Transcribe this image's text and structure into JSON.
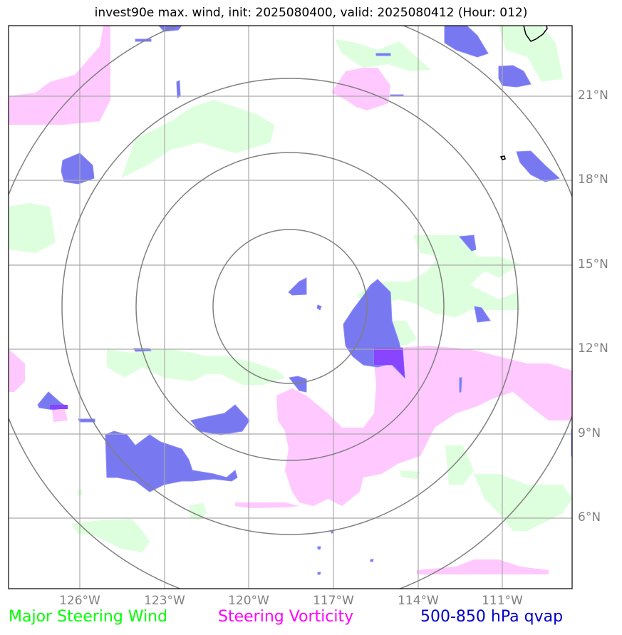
{
  "title": "invest90e max. wind, init: 2025080400, valid: 2025080412 (Hour: 012)",
  "map": {
    "lat_ticks": [
      "21°N",
      "18°N",
      "15°N",
      "12°N",
      "9°N",
      "6°N"
    ],
    "lon_ticks": [
      "126°W",
      "123°W",
      "120°W",
      "117°W",
      "114°W",
      "111°W"
    ],
    "range_rings": 4,
    "colors": {
      "grid": "#aaaaaa",
      "rings": "#808080",
      "coastline": "#000000",
      "steering_wind": "#ddffdd",
      "steering_vorticity": "#ffc8ff",
      "qvap": "#7878f0"
    }
  },
  "legend": {
    "wind": {
      "label": "Major Steering Wind",
      "color": "#00ff00"
    },
    "vorticity": {
      "label": "Steering Vorticity",
      "color": "#ff00ff"
    },
    "qvap": {
      "label": "500-850 hPa qvap",
      "color": "#0000cc"
    }
  }
}
